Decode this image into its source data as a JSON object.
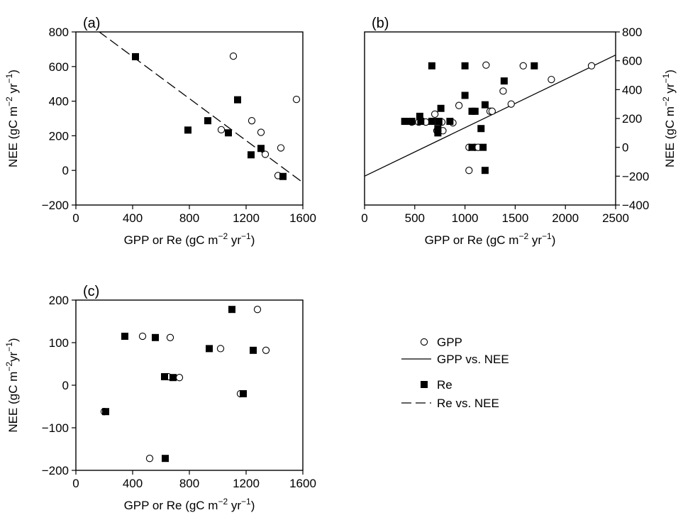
{
  "chart_data": [
    {
      "panel": "(a)",
      "type": "scatter",
      "xlabel": "GPP or Re (gC m",
      "xlabel_exp": "−2",
      "xlabel_tail": " yr",
      "xlabel_exp2": "−1",
      "xlabel_close": ")",
      "ylabel": "NEE (gC m",
      "ylabel_exp": "−2",
      "ylabel_tail": " yr",
      "ylabel_exp2": "−1",
      "ylabel_close": ")",
      "xlim": [
        0,
        1600
      ],
      "ylim": [
        -200,
        800
      ],
      "xticks": [
        0,
        400,
        800,
        1200,
        1600
      ],
      "yticks": [
        -200,
        0,
        200,
        400,
        600,
        800
      ],
      "xtick_labels": [
        "0",
        "400",
        "800",
        "1200",
        "1600"
      ],
      "ytick_labels": [
        "−200",
        "0",
        "200",
        "400",
        "600",
        "800"
      ],
      "y_axis_side": "left",
      "series": [
        {
          "name": "GPP",
          "marker": "open-circle",
          "points": [
            [
              1110,
              660
            ],
            [
              1555,
              410
            ],
            [
              1240,
              287
            ],
            [
              1025,
              235
            ],
            [
              1305,
              220
            ],
            [
              1335,
              93
            ],
            [
              1445,
              130
            ],
            [
              1425,
              -30
            ]
          ]
        },
        {
          "name": "Re",
          "marker": "filled-square",
          "points": [
            [
              420,
              657
            ],
            [
              790,
              233
            ],
            [
              930,
              287
            ],
            [
              1075,
              217
            ],
            [
              1140,
              408
            ],
            [
              1235,
              90
            ],
            [
              1305,
              127
            ],
            [
              1460,
              -35
            ]
          ]
        }
      ],
      "lines": [
        {
          "name": "Re vs. NEE",
          "style": "dashed",
          "x": [
            0,
            1600
          ],
          "y": [
            900,
            -70
          ]
        }
      ]
    },
    {
      "panel": "(b)",
      "type": "scatter",
      "xlabel": "GPP or Re (gC m",
      "xlabel_exp": "−2",
      "xlabel_tail": " yr",
      "xlabel_exp2": "−1",
      "xlabel_close": ")",
      "ylabel": "NEE (gC m",
      "ylabel_exp": "−2",
      "ylabel_tail": " yr",
      "ylabel_exp2": "−1",
      "ylabel_close": ")",
      "xlim": [
        0,
        2500
      ],
      "ylim": [
        -400,
        800
      ],
      "xticks": [
        0,
        500,
        1000,
        1500,
        2000,
        2500
      ],
      "yticks": [
        -400,
        -200,
        0,
        200,
        400,
        600,
        800
      ],
      "xtick_labels": [
        "0",
        "500",
        "1000",
        "1500",
        "2000",
        "2500"
      ],
      "ytick_labels": [
        "−400",
        "−200",
        "0",
        "200",
        "400",
        "600",
        "800"
      ],
      "y_axis_side": "right",
      "series": [
        {
          "name": "GPP",
          "marker": "open-circle",
          "points": [
            [
              1210,
              570
            ],
            [
              1580,
              565
            ],
            [
              2260,
              565
            ],
            [
              1860,
              470
            ],
            [
              1380,
              390
            ],
            [
              1460,
              300
            ],
            [
              940,
              290
            ],
            [
              1250,
              250
            ],
            [
              1270,
              250
            ],
            [
              700,
              230
            ],
            [
              470,
              175
            ],
            [
              540,
              175
            ],
            [
              610,
              175
            ],
            [
              770,
              175
            ],
            [
              880,
              170
            ],
            [
              720,
              115
            ],
            [
              750,
              115
            ],
            [
              780,
              115
            ],
            [
              1040,
              0
            ],
            [
              1100,
              0
            ],
            [
              1130,
              0
            ],
            [
              1040,
              -160
            ]
          ]
        },
        {
          "name": "Re",
          "marker": "filled-square",
          "points": [
            [
              670,
              565
            ],
            [
              1000,
              565
            ],
            [
              1690,
              565
            ],
            [
              1390,
              460
            ],
            [
              1000,
              360
            ],
            [
              1200,
              295
            ],
            [
              760,
              270
            ],
            [
              550,
              215
            ],
            [
              1070,
              250
            ],
            [
              1100,
              250
            ],
            [
              400,
              180
            ],
            [
              470,
              180
            ],
            [
              560,
              180
            ],
            [
              670,
              180
            ],
            [
              740,
              180
            ],
            [
              850,
              180
            ],
            [
              730,
              130
            ],
            [
              1160,
              130
            ],
            [
              730,
              100
            ],
            [
              1070,
              0
            ],
            [
              1180,
              0
            ],
            [
              1200,
              -160
            ]
          ]
        }
      ],
      "lines": [
        {
          "name": "GPP vs. NEE",
          "style": "solid",
          "x": [
            0,
            2500
          ],
          "y": [
            -200,
            640
          ]
        }
      ]
    },
    {
      "panel": "(c)",
      "type": "scatter",
      "xlabel": "GPP or Re (gC m",
      "xlabel_exp": "−2",
      "xlabel_tail": " yr",
      "xlabel_exp2": "−1",
      "xlabel_close": ")",
      "ylabel": "NEE (gC m",
      "ylabel_exp": "−2",
      "ylabel_tail": "yr",
      "ylabel_exp2": "−1",
      "ylabel_close": ")",
      "xlim": [
        0,
        1600
      ],
      "ylim": [
        -200,
        200
      ],
      "xticks": [
        0,
        400,
        800,
        1200,
        1600
      ],
      "yticks": [
        -200,
        -100,
        0,
        100,
        200
      ],
      "xtick_labels": [
        "0",
        "400",
        "800",
        "1200",
        "1600"
      ],
      "ytick_labels": [
        "−200",
        "−100",
        "0",
        "100",
        "200"
      ],
      "y_axis_side": "left",
      "series": [
        {
          "name": "GPP",
          "marker": "open-circle",
          "points": [
            [
              1280,
              178
            ],
            [
              470,
              115
            ],
            [
              665,
              112
            ],
            [
              1020,
              86
            ],
            [
              1340,
              82
            ],
            [
              650,
              20
            ],
            [
              730,
              18
            ],
            [
              1160,
              -20
            ],
            [
              200,
              -62
            ],
            [
              520,
              -172
            ]
          ]
        },
        {
          "name": "Re",
          "marker": "filled-square",
          "points": [
            [
              1100,
              178
            ],
            [
              345,
              115
            ],
            [
              560,
              112
            ],
            [
              940,
              86
            ],
            [
              1250,
              82
            ],
            [
              625,
              20
            ],
            [
              685,
              18
            ],
            [
              1180,
              -20
            ],
            [
              210,
              -62
            ],
            [
              630,
              -172
            ]
          ]
        }
      ],
      "lines": []
    }
  ],
  "legend": {
    "items": [
      {
        "label": "GPP",
        "symbol": "open-circle"
      },
      {
        "label": "GPP vs. NEE",
        "symbol": "solid-line"
      },
      {
        "label": "Re",
        "symbol": "filled-square"
      },
      {
        "label": "Re vs. NEE",
        "symbol": "dashed-line"
      }
    ]
  }
}
